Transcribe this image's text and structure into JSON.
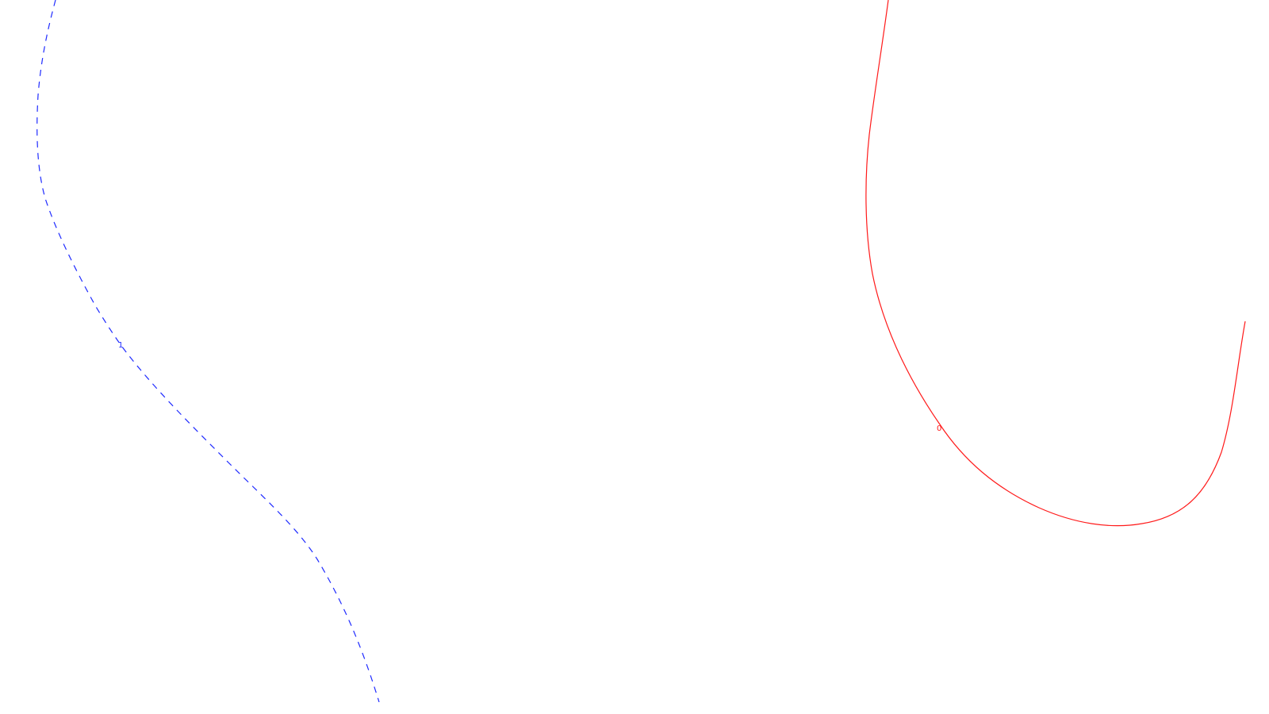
{
  "diagram": {
    "curves": [
      {
        "name": "dashed-curve",
        "label": "1",
        "color": "#1f2bff",
        "style": "dashed"
      },
      {
        "name": "solid-curve",
        "label": "0",
        "color": "#ff1a1a",
        "style": "solid"
      }
    ]
  }
}
